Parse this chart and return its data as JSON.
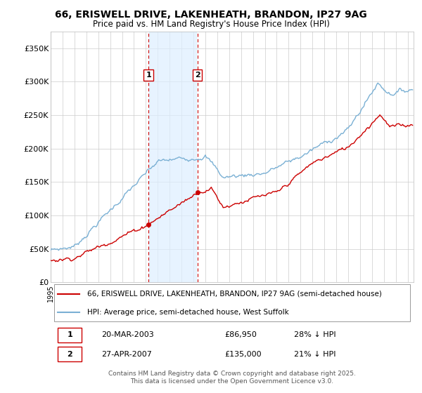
{
  "title": "66, ERISWELL DRIVE, LAKENHEATH, BRANDON, IP27 9AG",
  "subtitle": "Price paid vs. HM Land Registry's House Price Index (HPI)",
  "legend_line1": "66, ERISWELL DRIVE, LAKENHEATH, BRANDON, IP27 9AG (semi-detached house)",
  "legend_line2": "HPI: Average price, semi-detached house, West Suffolk",
  "footer": "Contains HM Land Registry data © Crown copyright and database right 2025.\nThis data is licensed under the Open Government Licence v3.0.",
  "sale1_label": "1",
  "sale1_date": "20-MAR-2003",
  "sale1_price": "£86,950",
  "sale1_hpi": "28% ↓ HPI",
  "sale2_label": "2",
  "sale2_date": "27-APR-2007",
  "sale2_price": "£135,000",
  "sale2_hpi": "21% ↓ HPI",
  "sale1_x": 2003.22,
  "sale2_x": 2007.33,
  "sale1_y": 86950,
  "sale2_y": 135000,
  "house_color": "#cc0000",
  "hpi_color": "#7ab0d4",
  "shade_color": "#ddeeff",
  "vline_color": "#cc0000",
  "ylim": [
    0,
    375000
  ],
  "yticks": [
    0,
    50000,
    100000,
    150000,
    200000,
    250000,
    300000,
    350000
  ],
  "ytick_labels": [
    "£0",
    "£50K",
    "£100K",
    "£150K",
    "£200K",
    "£250K",
    "£300K",
    "£350K"
  ],
  "bg_color": "#ffffff",
  "grid_color": "#cccccc",
  "xlim_start": 1995,
  "xlim_end": 2025.5
}
